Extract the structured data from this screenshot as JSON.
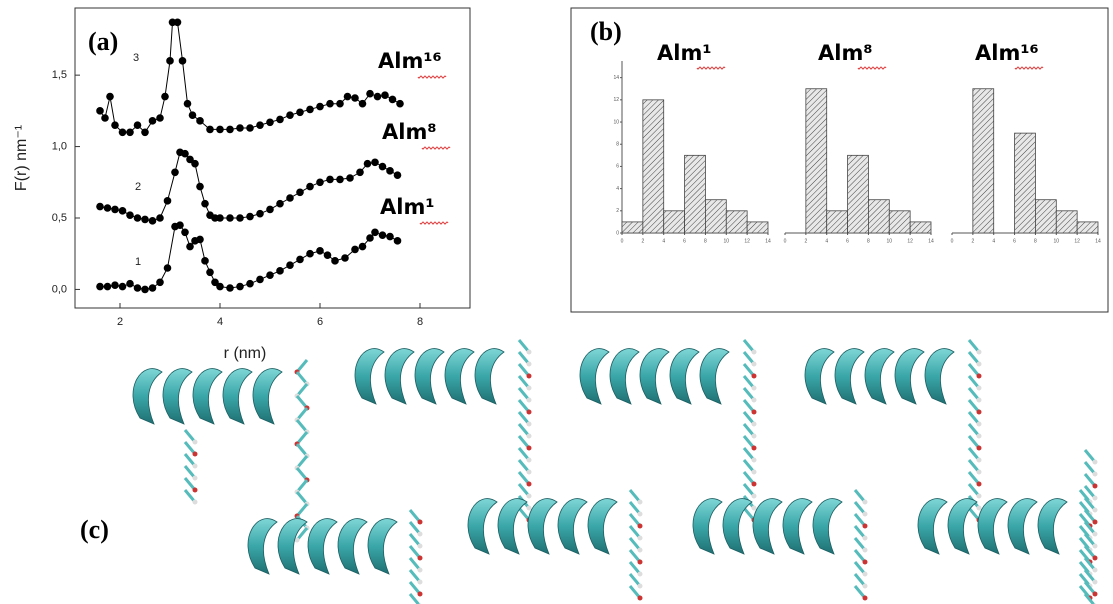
{
  "chart_data": [
    {
      "type": "line",
      "panel": "(a)",
      "xlabel": "r (nm)",
      "ylabel": "F(r) nm⁻¹",
      "xlim": [
        1.1,
        9.0
      ],
      "ylim": [
        -0.13,
        1.97
      ],
      "xticks": [
        2,
        4,
        6,
        8
      ],
      "yticks": [
        {
          "value": 0,
          "label": "0,0"
        },
        {
          "value": 0.5,
          "label": "0,5"
        },
        {
          "value": 1.0,
          "label": "1,0"
        },
        {
          "value": 1.5,
          "label": "1,5"
        }
      ],
      "annotations": [
        "1",
        "2",
        "3",
        "Alm¹",
        "Alm⁸",
        "Alm¹⁶"
      ],
      "series": [
        {
          "name": "1",
          "color": "#000000",
          "x": [
            1.6,
            1.75,
            1.9,
            2.05,
            2.2,
            2.35,
            2.5,
            2.65,
            2.8,
            2.95,
            3.1,
            3.2,
            3.3,
            3.4,
            3.5,
            3.6,
            3.7,
            3.8,
            3.9,
            4.0,
            4.2,
            4.4,
            4.6,
            4.8,
            5.0,
            5.2,
            5.4,
            5.6,
            5.8,
            6.0,
            6.15,
            6.3,
            6.5,
            6.7,
            6.85,
            7.0,
            7.1,
            7.25,
            7.4,
            7.55
          ],
          "values": [
            0.02,
            0.02,
            0.03,
            0.02,
            0.04,
            0.01,
            0.0,
            0.01,
            0.05,
            0.15,
            0.44,
            0.45,
            0.4,
            0.3,
            0.34,
            0.35,
            0.2,
            0.12,
            0.05,
            0.02,
            0.01,
            0.02,
            0.04,
            0.07,
            0.1,
            0.13,
            0.17,
            0.21,
            0.25,
            0.27,
            0.24,
            0.2,
            0.22,
            0.28,
            0.3,
            0.36,
            0.4,
            0.38,
            0.37,
            0.34
          ]
        },
        {
          "name": "2",
          "color": "#000000",
          "x": [
            1.6,
            1.75,
            1.9,
            2.05,
            2.2,
            2.35,
            2.5,
            2.65,
            2.8,
            2.95,
            3.1,
            3.2,
            3.3,
            3.4,
            3.5,
            3.6,
            3.7,
            3.8,
            3.9,
            4.0,
            4.2,
            4.4,
            4.6,
            4.8,
            5.0,
            5.2,
            5.4,
            5.6,
            5.8,
            6.0,
            6.2,
            6.4,
            6.6,
            6.8,
            6.95,
            7.1,
            7.25,
            7.4,
            7.55
          ],
          "values": [
            0.58,
            0.57,
            0.56,
            0.55,
            0.52,
            0.5,
            0.49,
            0.48,
            0.5,
            0.62,
            0.82,
            0.96,
            0.95,
            0.91,
            0.88,
            0.72,
            0.6,
            0.52,
            0.5,
            0.5,
            0.5,
            0.5,
            0.51,
            0.53,
            0.56,
            0.6,
            0.64,
            0.68,
            0.72,
            0.75,
            0.77,
            0.77,
            0.78,
            0.82,
            0.88,
            0.89,
            0.86,
            0.83,
            0.8
          ]
        },
        {
          "name": "3",
          "color": "#000000",
          "x": [
            1.6,
            1.7,
            1.8,
            1.9,
            2.05,
            2.2,
            2.35,
            2.5,
            2.65,
            2.8,
            2.9,
            3.0,
            3.05,
            3.15,
            3.25,
            3.35,
            3.45,
            3.6,
            3.8,
            4.0,
            4.2,
            4.4,
            4.6,
            4.8,
            5.0,
            5.2,
            5.4,
            5.6,
            5.8,
            6.0,
            6.2,
            6.4,
            6.55,
            6.7,
            6.85,
            7.0,
            7.15,
            7.3,
            7.45,
            7.6
          ],
          "values": [
            1.25,
            1.2,
            1.35,
            1.15,
            1.1,
            1.1,
            1.15,
            1.1,
            1.18,
            1.2,
            1.35,
            1.6,
            1.87,
            1.87,
            1.6,
            1.3,
            1.22,
            1.18,
            1.12,
            1.12,
            1.12,
            1.13,
            1.13,
            1.15,
            1.17,
            1.19,
            1.22,
            1.24,
            1.26,
            1.28,
            1.3,
            1.3,
            1.35,
            1.34,
            1.3,
            1.37,
            1.35,
            1.36,
            1.33,
            1.3
          ]
        }
      ]
    },
    {
      "type": "histogram",
      "panel": "(b)",
      "title": "Alm¹",
      "bins": [
        0,
        2,
        4,
        6,
        8,
        10,
        12,
        14
      ],
      "values": [
        1,
        12,
        2,
        7,
        3,
        2,
        1
      ],
      "xlim": [
        0,
        14
      ],
      "ylim": [
        0,
        15.5
      ],
      "xticks": [
        0,
        2,
        4,
        6,
        8,
        10,
        12,
        14
      ],
      "yticks": [
        0,
        2,
        4,
        6,
        8,
        10,
        12,
        14
      ]
    },
    {
      "type": "histogram",
      "title": "Alm⁸",
      "bins": [
        0,
        2,
        4,
        6,
        8,
        10,
        12,
        14
      ],
      "values": [
        0,
        13,
        2,
        7,
        3,
        2,
        1
      ],
      "xlim": [
        0,
        14
      ],
      "ylim": [
        0,
        15.5
      ],
      "xticks": [
        0,
        2,
        4,
        6,
        8,
        10,
        12,
        14
      ]
    },
    {
      "type": "histogram",
      "title": "Alm¹⁶",
      "bins": [
        0,
        2,
        4,
        6,
        8,
        10,
        12,
        14
      ],
      "values": [
        0,
        13,
        0,
        9,
        3,
        2,
        1
      ],
      "xlim": [
        0,
        14
      ],
      "ylim": [
        0,
        15.5
      ],
      "xticks": [
        0,
        2,
        4,
        6,
        8,
        10,
        12,
        14
      ]
    }
  ],
  "panel_c": {
    "label": "(c)"
  }
}
